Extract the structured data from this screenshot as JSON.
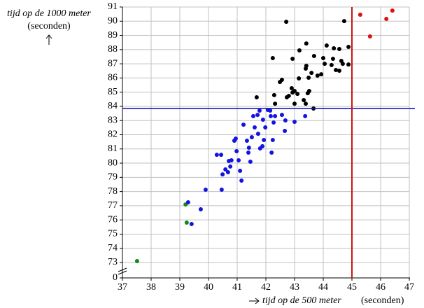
{
  "chart_data": {
    "type": "scatter",
    "y_label": "tijd op de 1000 meter",
    "y_unit": "(seconden)",
    "x_label": "tijd op de 500 meter",
    "x_unit": "(seconden)",
    "xlim": [
      37,
      47
    ],
    "xticks": [
      37,
      38,
      39,
      40,
      41,
      42,
      43,
      44,
      45,
      46,
      47
    ],
    "ylim": [
      0,
      91
    ],
    "y_break": [
      0,
      73
    ],
    "yticks": [
      0,
      73,
      74,
      75,
      76,
      77,
      78,
      79,
      80,
      81,
      82,
      83,
      84,
      85,
      86,
      87,
      88,
      89,
      90,
      91
    ],
    "grid": true,
    "reference_lines": [
      {
        "axis": "y",
        "value": 83.85,
        "color": "#1a1ab8"
      },
      {
        "axis": "x",
        "value": 45,
        "color": "#d01010"
      }
    ],
    "series": [
      {
        "color": "#138a13",
        "x": [
          37.51,
          39.2,
          39.24
        ],
        "y": [
          73.1,
          77.09,
          75.81
        ]
      },
      {
        "color": "#1414e0",
        "x": [
          39.29,
          39.73,
          39.41,
          39.9,
          40.46,
          40.49,
          40.29,
          40.44,
          40.71,
          40.59,
          40.68,
          40.76,
          40.8,
          40.98,
          40.9,
          40.95,
          41.1,
          41.15,
          41.22,
          41.05,
          41.34,
          41.39,
          41.41,
          41.46,
          41.51,
          41.56,
          41.61,
          41.71,
          41.73,
          41.78,
          41.8,
          41.88,
          41.9,
          41.93,
          41.98,
          42.07,
          42.15,
          42.17,
          42.24,
          42.2,
          42.27,
          42.32,
          42.56,
          42.66,
          42.68,
          43.0,
          43.37
        ],
        "y": [
          77.24,
          76.75,
          75.71,
          78.13,
          78.13,
          79.21,
          80.59,
          80.59,
          80.15,
          79.56,
          79.36,
          79.76,
          80.2,
          80.84,
          81.58,
          81.73,
          79.46,
          78.77,
          82.71,
          80.2,
          81.58,
          80.74,
          81.09,
          80.1,
          81.83,
          83.31,
          82.52,
          83.4,
          82.07,
          83.7,
          81.04,
          81.19,
          83.06,
          81.63,
          82.52,
          83.75,
          83.7,
          83.31,
          81.63,
          80.74,
          82.86,
          83.31,
          83.4,
          82.27,
          83.01,
          82.91,
          83.31
        ]
      },
      {
        "color": "#000000",
        "x": [
          42.71,
          44.73,
          42.24,
          42.93,
          43.17,
          43.41,
          44.12,
          44.37,
          44.0,
          44.34,
          44.56,
          44.88,
          43.68,
          43.41,
          43.59,
          43.39,
          43.49,
          43.15,
          42.9,
          42.93,
          42.8,
          43.0,
          43.1,
          42.73,
          43.0,
          43.32,
          43.39,
          43.46,
          43.66,
          42.29,
          42.56,
          41.68,
          42.32,
          42.49,
          43.8,
          43.93,
          44.05,
          44.63,
          44.88,
          44.29,
          44.44,
          44.56,
          44.68,
          43.51
        ],
        "y": [
          89.96,
          90.01,
          87.4,
          87.35,
          87.94,
          88.43,
          88.29,
          88.09,
          87.4,
          87.35,
          88.04,
          88.19,
          87.55,
          86.86,
          86.36,
          86.66,
          86.02,
          85.97,
          85.28,
          84.98,
          84.74,
          85.08,
          84.88,
          84.64,
          84.19,
          84.44,
          84.19,
          84.93,
          83.85,
          84.79,
          85.87,
          84.64,
          84.19,
          85.72,
          86.17,
          86.26,
          87.0,
          87.2,
          86.95,
          86.91,
          86.56,
          86.51,
          87.0,
          85.08
        ]
      },
      {
        "color": "#e01010",
        "x": [
          45.29,
          45.63,
          46.2,
          46.41
        ],
        "y": [
          90.46,
          88.93,
          90.16,
          90.75
        ]
      }
    ]
  }
}
